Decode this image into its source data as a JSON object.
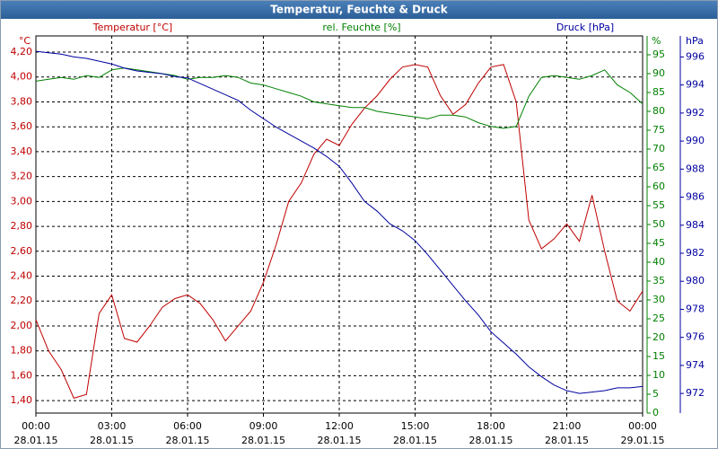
{
  "chart_data": {
    "type": "line",
    "title": "Temperatur, Feuchte & Druck",
    "x": [
      0,
      0.5,
      1,
      1.5,
      2,
      2.5,
      3,
      3.5,
      4,
      4.5,
      5,
      5.5,
      6,
      6.5,
      7,
      7.5,
      8,
      8.5,
      9,
      9.5,
      10,
      10.5,
      11,
      11.5,
      12,
      12.5,
      13,
      13.5,
      14,
      14.5,
      15,
      15.5,
      16,
      16.5,
      17,
      17.5,
      18,
      18.5,
      19,
      19.5,
      20,
      20.5,
      21,
      21.5,
      22,
      22.5,
      23,
      23.5,
      24
    ],
    "xlim": [
      0,
      24
    ],
    "xticks": [
      {
        "value": 0,
        "label": "00:00",
        "date": "28.01.15"
      },
      {
        "value": 3,
        "label": "03:00",
        "date": "28.01.15"
      },
      {
        "value": 6,
        "label": "06:00",
        "date": "28.01.15"
      },
      {
        "value": 9,
        "label": "09:00",
        "date": "28.01.15"
      },
      {
        "value": 12,
        "label": "12:00",
        "date": "28.01.15"
      },
      {
        "value": 15,
        "label": "15:00",
        "date": "28.01.15"
      },
      {
        "value": 18,
        "label": "18:00",
        "date": "28.01.15"
      },
      {
        "value": 21,
        "label": "21:00",
        "date": "28.01.15"
      },
      {
        "value": 24,
        "label": "00:00",
        "date": "29.01.15"
      }
    ],
    "y_unit": "°C",
    "ylim": [
      1.3,
      4.33
    ],
    "yticks": [
      {
        "value": 1.4,
        "label": "1,40"
      },
      {
        "value": 1.6,
        "label": "1,60"
      },
      {
        "value": 1.8,
        "label": "1,80"
      },
      {
        "value": 2.0,
        "label": "2,00"
      },
      {
        "value": 2.2,
        "label": "2,20"
      },
      {
        "value": 2.4,
        "label": "2,40"
      },
      {
        "value": 2.6,
        "label": "2,60"
      },
      {
        "value": 2.8,
        "label": "2,80"
      },
      {
        "value": 3.0,
        "label": "3,00"
      },
      {
        "value": 3.2,
        "label": "3,20"
      },
      {
        "value": 3.4,
        "label": "3,40"
      },
      {
        "value": 3.6,
        "label": "3,60"
      },
      {
        "value": 3.8,
        "label": "3,80"
      },
      {
        "value": 4.0,
        "label": "4,00"
      },
      {
        "value": 4.2,
        "label": "4,20"
      }
    ],
    "y2_unit": "%",
    "y2lim": [
      0,
      100
    ],
    "y2ticks": [
      0,
      5,
      10,
      15,
      20,
      25,
      30,
      35,
      40,
      45,
      50,
      55,
      60,
      65,
      70,
      75,
      80,
      85,
      90,
      95
    ],
    "y3_unit": "hPa",
    "y3lim": [
      970.6,
      997.5
    ],
    "y3ticks": [
      972,
      974,
      976,
      978,
      980,
      982,
      984,
      986,
      988,
      990,
      992,
      994,
      996
    ],
    "grid": true,
    "series": [
      {
        "name": "Temperatur [°C]",
        "color": "#c00000",
        "axis": "y",
        "values": [
          2.05,
          1.8,
          1.65,
          1.42,
          1.45,
          2.1,
          2.25,
          1.9,
          1.87,
          2.0,
          2.15,
          2.22,
          2.25,
          2.18,
          2.05,
          1.88,
          2.0,
          2.12,
          2.35,
          2.65,
          3.0,
          3.15,
          3.38,
          3.5,
          3.45,
          3.62,
          3.75,
          3.85,
          3.98,
          4.08,
          4.1,
          4.08,
          3.85,
          3.7,
          3.78,
          3.95,
          4.08,
          4.1,
          3.8,
          2.85,
          2.62,
          2.7,
          2.82,
          2.68,
          3.05,
          2.6,
          2.2,
          2.12,
          2.28
        ]
      },
      {
        "name": "rel. Feuchte [%]",
        "color": "#008000",
        "axis": "y2",
        "values": [
          88,
          88.5,
          89,
          88.5,
          89.5,
          89,
          91,
          91.5,
          91,
          90.5,
          90,
          89.5,
          88.5,
          89,
          89,
          89.5,
          89,
          87.5,
          87,
          86,
          85,
          84,
          82.5,
          82,
          81.5,
          81,
          81,
          80,
          79.5,
          79,
          78.5,
          78,
          79,
          79,
          78.5,
          77,
          76,
          75.5,
          76,
          84,
          89,
          89.5,
          89,
          88.5,
          89.5,
          91,
          87,
          85,
          82
        ]
      },
      {
        "name": "Druck [hPa]",
        "color": "#0000a0",
        "axis": "y3",
        "values": [
          996.4,
          996.3,
          996.2,
          996.0,
          995.9,
          995.7,
          995.5,
          995.2,
          995.0,
          994.9,
          994.8,
          994.6,
          994.5,
          994.1,
          993.7,
          993.3,
          992.9,
          992.2,
          991.6,
          991.0,
          990.5,
          990.0,
          989.5,
          988.9,
          988.2,
          987.0,
          985.7,
          985.0,
          984.1,
          983.6,
          982.9,
          981.9,
          980.8,
          979.7,
          978.6,
          977.6,
          976.4,
          975.6,
          974.8,
          973.9,
          973.2,
          972.6,
          972.2,
          972.0,
          972.1,
          972.2,
          972.4,
          972.4,
          972.5
        ]
      }
    ]
  }
}
